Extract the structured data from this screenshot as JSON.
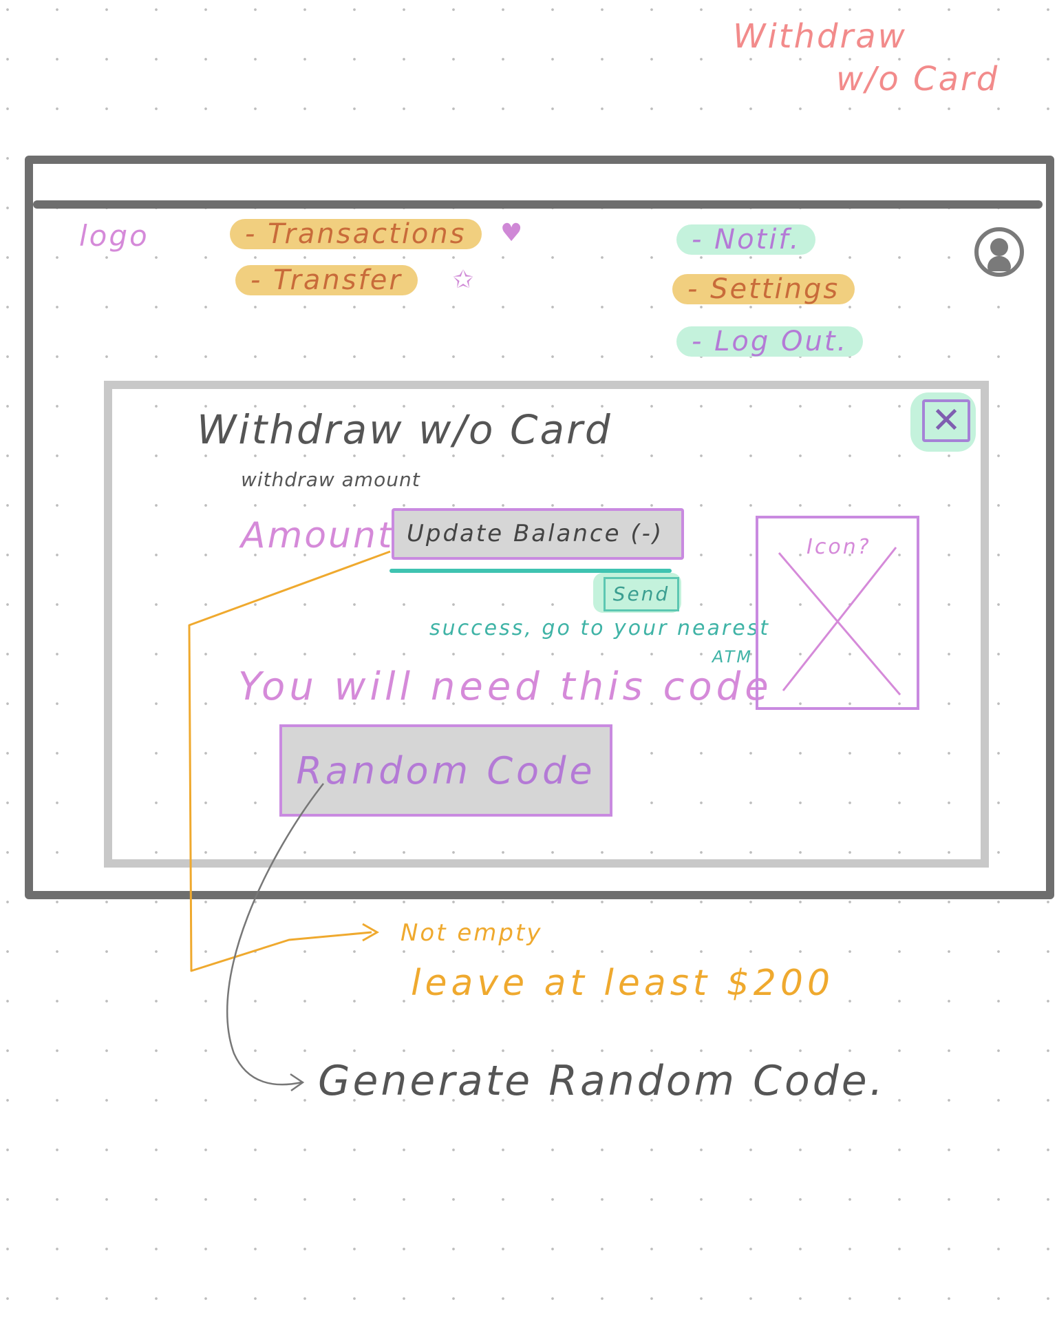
{
  "page_title": {
    "line1": "Withdraw",
    "line2": "w/o Card"
  },
  "header": {
    "logo": "logo",
    "nav_left": [
      {
        "label": "- Transactions",
        "marker": "♥",
        "highlight": "#f1cf7f"
      },
      {
        "label": "- Transfer",
        "marker": "✩",
        "highlight": "#f1cf7f"
      }
    ],
    "nav_right": [
      {
        "label": "- Notif.",
        "highlight": "#c4f2dc"
      },
      {
        "label": "- Settings",
        "highlight": "#f1cf7f"
      },
      {
        "label": "- Log Out.",
        "highlight": "#c4f2dc"
      }
    ],
    "avatar_icon": "user-avatar-icon"
  },
  "modal": {
    "title": "Withdraw w/o Card",
    "close_symbol": "✕",
    "field_caption": "withdraw amount",
    "amount_label": "Amount",
    "amount_input": "Update Balance (-)",
    "send_label": "Send",
    "success_text": "success, go to your nearest",
    "success_text_2": "ATM",
    "need_code_text": "You will need this code",
    "code_value": "Random Code",
    "icon_placeholder_label": "Icon?"
  },
  "annotations": {
    "validation_title": "Not empty",
    "validation_rule": "leave at least $200",
    "generate_note": "Generate Random Code."
  },
  "colors": {
    "frame": "#6e6e6e",
    "modal_border": "#c8c8c8",
    "highlight_yellow": "#f1cf7f",
    "highlight_green": "#c4f2dc",
    "accent_purple": "#c98ae0",
    "teal": "#3fc3b1",
    "orange": "#efa92e",
    "title_pink": "#f28b8b"
  }
}
